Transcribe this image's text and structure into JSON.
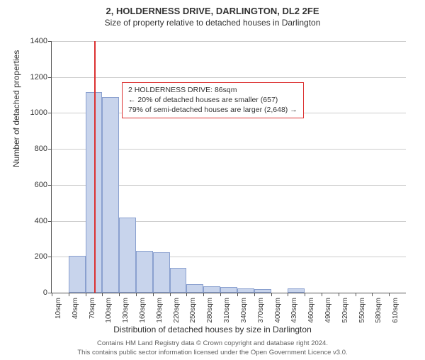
{
  "title1": "2, HOLDERNESS DRIVE, DARLINGTON, DL2 2FE",
  "title2": "Size of property relative to detached houses in Darlington",
  "ylabel": "Number of detached properties",
  "xlabel": "Distribution of detached houses by size in Darlington",
  "info_line1": "2 HOLDERNESS DRIVE: 86sqm",
  "info_line2": "← 20% of detached houses are smaller (657)",
  "info_line3": "79% of semi-detached houses are larger (2,648) →",
  "footer_line1": "Contains HM Land Registry data © Crown copyright and database right 2024.",
  "footer_line2": "This contains public sector information licensed under the Open Government Licence v3.0.",
  "chart": {
    "type": "histogram",
    "ylim": [
      0,
      1400
    ],
    "ytick_step": 200,
    "xlim": [
      10,
      640
    ],
    "xtick_step": 30,
    "xtick_unit": "sqm",
    "bar_category_width": 30,
    "marker_x": 86,
    "marker_color": "#dc3232",
    "bar_fill": "#c8d4ec",
    "bar_border": "#8aa0cf",
    "grid_color": "#cccccc",
    "bins": [
      {
        "start": 40,
        "value": 205
      },
      {
        "start": 70,
        "value": 1115
      },
      {
        "start": 100,
        "value": 1090
      },
      {
        "start": 130,
        "value": 420
      },
      {
        "start": 160,
        "value": 232
      },
      {
        "start": 190,
        "value": 225
      },
      {
        "start": 220,
        "value": 140
      },
      {
        "start": 250,
        "value": 48
      },
      {
        "start": 280,
        "value": 35
      },
      {
        "start": 310,
        "value": 30
      },
      {
        "start": 340,
        "value": 22
      },
      {
        "start": 370,
        "value": 18
      },
      {
        "start": 430,
        "value": 22
      }
    ]
  }
}
